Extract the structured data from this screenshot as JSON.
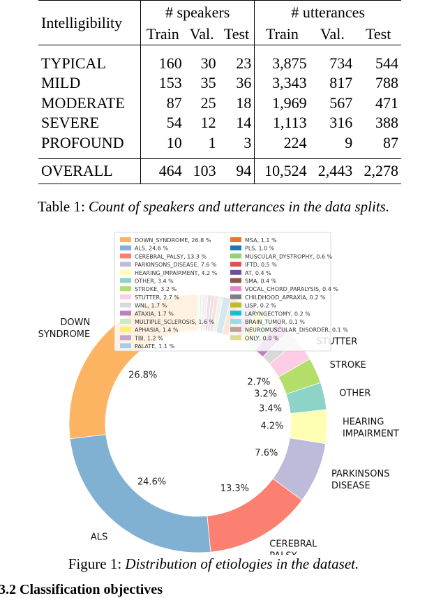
{
  "table": {
    "header": {
      "col_label": "Intelligibility",
      "group_speakers": "# speakers",
      "group_utterances": "# utterances",
      "sub": [
        "Train",
        "Val.",
        "Test",
        "Train",
        "Val.",
        "Test"
      ]
    },
    "rows": [
      {
        "label": "TYPICAL",
        "cells": [
          "160",
          "30",
          "23",
          "3,875",
          "734",
          "544"
        ]
      },
      {
        "label": "MILD",
        "cells": [
          "153",
          "35",
          "36",
          "3,343",
          "817",
          "788"
        ]
      },
      {
        "label": "MODERATE",
        "cells": [
          "87",
          "25",
          "18",
          "1,969",
          "567",
          "471"
        ]
      },
      {
        "label": "SEVERE",
        "cells": [
          "54",
          "12",
          "14",
          "1,113",
          "316",
          "388"
        ]
      },
      {
        "label": "PROFOUND",
        "cells": [
          "10",
          "1",
          "3",
          "224",
          "9",
          "87"
        ]
      }
    ],
    "overall": {
      "label": "OVERALL",
      "cells": [
        "464",
        "103",
        "94",
        "10,524",
        "2,443",
        "2,278"
      ]
    },
    "caption_prefix": "Table 1: ",
    "caption_text": "Count of speakers and utterances in the data splits."
  },
  "figure": {
    "caption_prefix": "Figure 1: ",
    "caption_text": "Distribution of etiologies in the dataset."
  },
  "section_heading": "3.2   Classification objectives",
  "chart_data": {
    "type": "pie",
    "donut": true,
    "unit": "%",
    "slices": [
      {
        "name": "DOWN_SYNDROME",
        "ring_label": "DOWN SYNDROME",
        "pct_label": "26.8%",
        "value": 26.8,
        "color": "#fdb462"
      },
      {
        "name": "ALS",
        "ring_label": "ALS",
        "pct_label": "24.6%",
        "value": 24.6,
        "color": "#80b1d3"
      },
      {
        "name": "CEREBRAL_PALSY",
        "ring_label": "CEREBRAL PALSY",
        "pct_label": "13.3%",
        "value": 13.3,
        "color": "#fb8072"
      },
      {
        "name": "PARKINSONS_DISEASE",
        "ring_label": "PARKINSONS DISEASE",
        "pct_label": "7.6%",
        "value": 7.6,
        "color": "#bebada"
      },
      {
        "name": "HEARING_IMPAIRMENT",
        "ring_label": "HEARING IMPAIRMENT",
        "pct_label": "4.2%",
        "value": 4.2,
        "color": "#ffffb3"
      },
      {
        "name": "OTHER",
        "ring_label": "OTHER",
        "pct_label": "3.4%",
        "value": 3.4,
        "color": "#8dd3c7"
      },
      {
        "name": "STROKE",
        "ring_label": "STROKE",
        "pct_label": "3.2%",
        "value": 3.2,
        "color": "#b3de69"
      },
      {
        "name": "STUTTER",
        "ring_label": "STUTTER",
        "pct_label": "2.7%",
        "value": 2.7,
        "color": "#fccde5"
      },
      {
        "name": "WNL",
        "ring_label": "",
        "pct_label": "",
        "value": 1.7,
        "color": "#d9d9d9"
      },
      {
        "name": "ATAXIA",
        "ring_label": "",
        "pct_label": "",
        "value": 1.7,
        "color": "#bc80bd"
      },
      {
        "name": "MULTIPLE_SCLEROSIS",
        "ring_label": "",
        "pct_label": "",
        "value": 1.6,
        "color": "#ccebc5"
      },
      {
        "name": "APHASIA",
        "ring_label": "",
        "pct_label": "",
        "value": 1.4,
        "color": "#ffed6f"
      },
      {
        "name": "TBI",
        "ring_label": "",
        "pct_label": "",
        "value": 1.2,
        "color": "#c2a5cf"
      },
      {
        "name": "PALATE",
        "ring_label": "",
        "pct_label": "",
        "value": 1.1,
        "color": "#a6cee3"
      },
      {
        "name": "MSA",
        "ring_label": "",
        "pct_label": "",
        "value": 1.1,
        "color": "#e6772e"
      },
      {
        "name": "PLS",
        "ring_label": "",
        "pct_label": "",
        "value": 1.0,
        "color": "#1f78b4"
      },
      {
        "name": "MUSCULAR_DYSTROPHY",
        "ring_label": "",
        "pct_label": "",
        "value": 0.6,
        "color": "#8fd27a"
      },
      {
        "name": "IFTD",
        "ring_label": "",
        "pct_label": "",
        "value": 0.5,
        "color": "#e05050"
      },
      {
        "name": "AT",
        "ring_label": "",
        "pct_label": "",
        "value": 0.4,
        "color": "#6f4ea0"
      },
      {
        "name": "SMA",
        "ring_label": "",
        "pct_label": "",
        "value": 0.4,
        "color": "#8c564b"
      },
      {
        "name": "VOCAL_CHORD_PARALYSIS",
        "ring_label": "",
        "pct_label": "",
        "value": 0.4,
        "color": "#e78ac3"
      },
      {
        "name": "CHILDHOOD_APRAXIA",
        "ring_label": "",
        "pct_label": "",
        "value": 0.2,
        "color": "#7f7f7f"
      },
      {
        "name": "LISP",
        "ring_label": "",
        "pct_label": "",
        "value": 0.2,
        "color": "#bcbd22"
      },
      {
        "name": "LARYNGECTOMY",
        "ring_label": "",
        "pct_label": "",
        "value": 0.2,
        "color": "#17becf"
      },
      {
        "name": "BRAIN_TUMOR",
        "ring_label": "",
        "pct_label": "",
        "value": 0.1,
        "color": "#9edae5"
      },
      {
        "name": "NEUROMUSCULAR_DISORDER",
        "ring_label": "",
        "pct_label": "",
        "value": 0.1,
        "color": "#c49c94"
      },
      {
        "name": "ONLY",
        "ring_label": "",
        "pct_label": "",
        "value": 0.0,
        "color": "#dbdb8d"
      }
    ],
    "legend": {
      "placement": "top-center",
      "columns": [
        [
          "DOWN_SYNDROME, 26.8 %",
          "ALS, 24.6 %",
          "CEREBRAL_PALSY, 13.3 %",
          "PARKINSONS_DISEASE, 7.6 %",
          "HEARING_IMPAIRMENT, 4.2 %",
          "OTHER, 3.4 %",
          "STROKE, 3.2 %",
          "STUTTER, 2.7 %",
          "WNL, 1.7 %",
          "ATAXIA, 1.7 %",
          "MULTIPLE_SCLEROSIS, 1.6 %",
          "APHASIA, 1.4 %",
          "TBI, 1.2 %",
          "PALATE, 1.1 %"
        ],
        [
          "MSA, 1.1 %",
          "PLS, 1.0 %",
          "MUSCULAR_DYSTROPHY, 0.6 %",
          "IFTD, 0.5 %",
          "AT, 0.4 %",
          "SMA, 0.4 %",
          "VOCAL_CHORD_PARALYSIS, 0.4 %",
          "CHILDHOOD_APRAXIA, 0.2 %",
          "LISP, 0.2 %",
          "LARYNGECTOMY, 0.2 %",
          "BRAIN_TUMOR, 0.1 %",
          "NEUROMUSCULAR_DISORDER, 0.1 %",
          "ONLY, 0.0 %"
        ]
      ]
    }
  }
}
